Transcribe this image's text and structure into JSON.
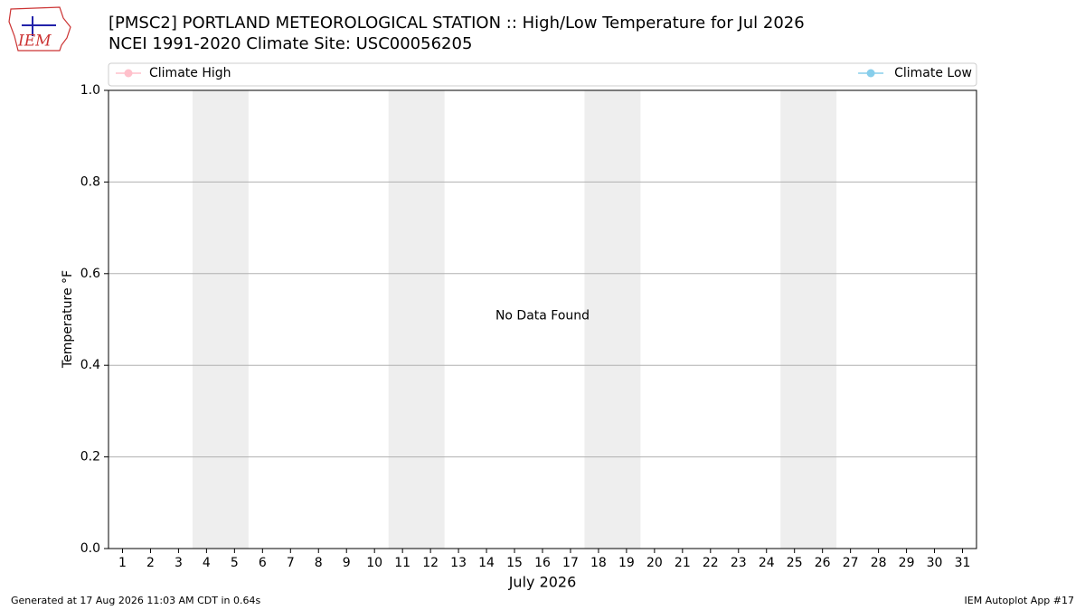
{
  "chart_data": {
    "type": "line",
    "logo": "IEM",
    "title": "[PMSC2] PORTLAND METEOROLOGICAL STATION :: High/Low Temperature for Jul 2026",
    "subtitle": "NCEI 1991-2020 Climate Site: USC00056205",
    "xlabel": "July 2026",
    "ylabel": "Temperature °F",
    "annotation": "No Data Found",
    "footer_left": "Generated at 17 Aug 2026 11:03 AM CDT in 0.64s",
    "footer_right": "IEM Autoplot App #17",
    "x": [
      1,
      2,
      3,
      4,
      5,
      6,
      7,
      8,
      9,
      10,
      11,
      12,
      13,
      14,
      15,
      16,
      17,
      18,
      19,
      20,
      21,
      22,
      23,
      24,
      25,
      26,
      27,
      28,
      29,
      30,
      31
    ],
    "series": [
      {
        "name": "Climate High",
        "color": "pink",
        "values": [
          null,
          null,
          null,
          null,
          null,
          null,
          null,
          null,
          null,
          null,
          null,
          null,
          null,
          null,
          null,
          null,
          null,
          null,
          null,
          null,
          null,
          null,
          null,
          null,
          null,
          null,
          null,
          null,
          null,
          null,
          null
        ]
      },
      {
        "name": "Climate Low",
        "color": "skyblue",
        "values": [
          null,
          null,
          null,
          null,
          null,
          null,
          null,
          null,
          null,
          null,
          null,
          null,
          null,
          null,
          null,
          null,
          null,
          null,
          null,
          null,
          null,
          null,
          null,
          null,
          null,
          null,
          null,
          null,
          null,
          null,
          null
        ]
      }
    ],
    "shaded_spans": [
      [
        3.5,
        5.5
      ],
      [
        10.5,
        12.5
      ],
      [
        17.5,
        19.5
      ],
      [
        24.5,
        26.5
      ]
    ],
    "shade_color": "#eeeeee",
    "xlim": [
      0.5,
      31.5
    ],
    "xticks": [
      1,
      2,
      3,
      4,
      5,
      6,
      7,
      8,
      9,
      10,
      11,
      12,
      13,
      14,
      15,
      16,
      17,
      18,
      19,
      20,
      21,
      22,
      23,
      24,
      25,
      26,
      27,
      28,
      29,
      30,
      31
    ],
    "ylim": [
      0,
      1
    ],
    "yticks": [
      {
        "value": 0,
        "label": "0.0"
      },
      0.2,
      0.4,
      0.6,
      0.8,
      {
        "value": 1,
        "label": "1.0"
      }
    ],
    "grid": "y",
    "legend": "top"
  }
}
